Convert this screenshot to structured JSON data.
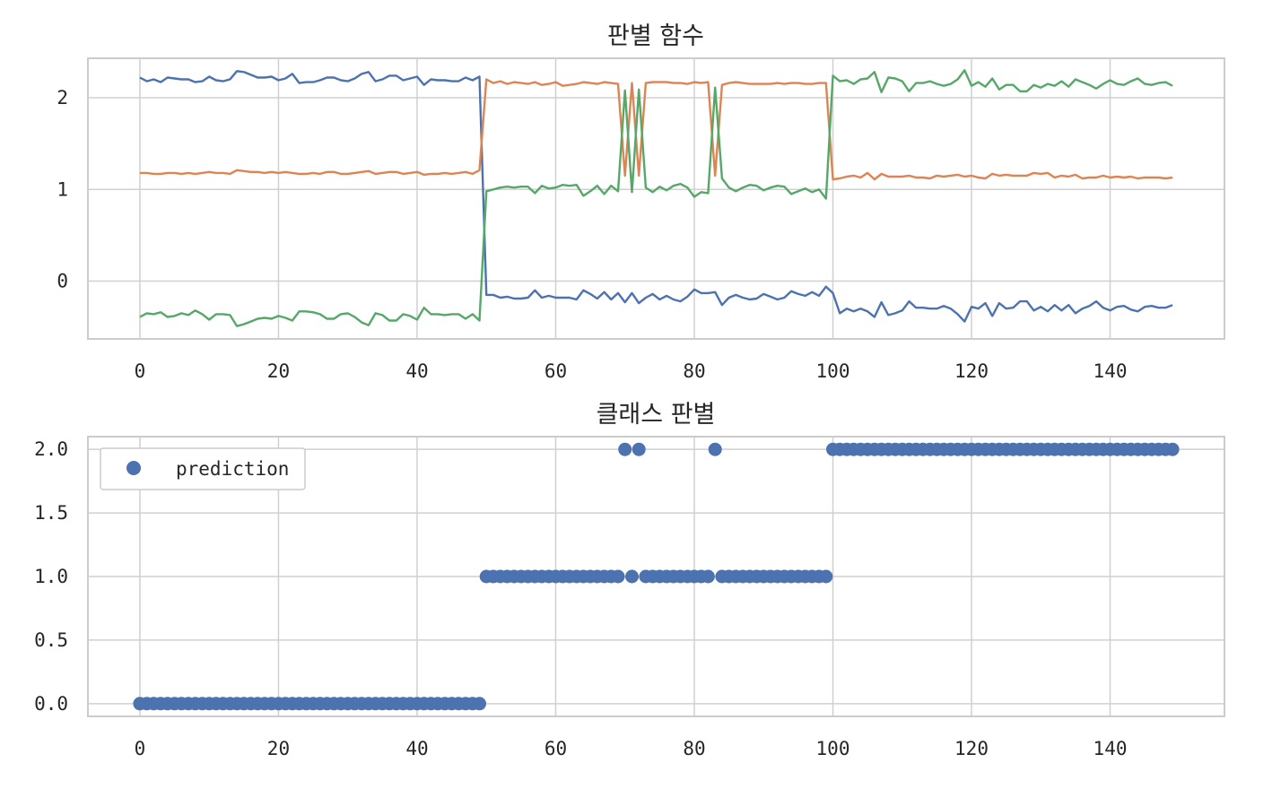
{
  "chart_data": [
    {
      "type": "line",
      "title": "판별 함수",
      "xlim": [
        -7.5,
        156.5
      ],
      "ylim": [
        -0.63,
        2.43
      ],
      "xticks": [
        0,
        20,
        40,
        60,
        80,
        100,
        120,
        140
      ],
      "yticks": [
        0,
        1,
        2
      ],
      "xtick_labels": [
        "0",
        "20",
        "40",
        "60",
        "80",
        "100",
        "120",
        "140"
      ],
      "ytick_labels": [
        "0",
        "1",
        "2"
      ],
      "grid": true,
      "series": [
        {
          "color": "#4c72b0",
          "values": [
            2.22,
            2.18,
            2.2,
            2.17,
            2.22,
            2.21,
            2.2,
            2.2,
            2.17,
            2.18,
            2.23,
            2.19,
            2.18,
            2.2,
            2.29,
            2.28,
            2.25,
            2.22,
            2.22,
            2.23,
            2.19,
            2.21,
            2.26,
            2.16,
            2.17,
            2.17,
            2.19,
            2.22,
            2.22,
            2.19,
            2.18,
            2.21,
            2.26,
            2.28,
            2.18,
            2.2,
            2.24,
            2.24,
            2.19,
            2.21,
            2.23,
            2.14,
            2.2,
            2.19,
            2.19,
            2.18,
            2.18,
            2.22,
            2.19,
            2.23,
            -0.15,
            -0.15,
            -0.18,
            -0.17,
            -0.19,
            -0.19,
            -0.18,
            -0.1,
            -0.18,
            -0.16,
            -0.18,
            -0.18,
            -0.18,
            -0.2,
            -0.1,
            -0.14,
            -0.19,
            -0.12,
            -0.2,
            -0.13,
            -0.23,
            -0.13,
            -0.24,
            -0.18,
            -0.14,
            -0.2,
            -0.16,
            -0.2,
            -0.22,
            -0.17,
            -0.09,
            -0.13,
            -0.13,
            -0.12,
            -0.26,
            -0.18,
            -0.15,
            -0.18,
            -0.2,
            -0.19,
            -0.14,
            -0.17,
            -0.2,
            -0.18,
            -0.11,
            -0.14,
            -0.16,
            -0.12,
            -0.16,
            -0.06,
            -0.13,
            -0.35,
            -0.3,
            -0.33,
            -0.3,
            -0.33,
            -0.39,
            -0.23,
            -0.37,
            -0.35,
            -0.32,
            -0.22,
            -0.29,
            -0.29,
            -0.3,
            -0.3,
            -0.27,
            -0.3,
            -0.36,
            -0.44,
            -0.28,
            -0.3,
            -0.24,
            -0.38,
            -0.24,
            -0.3,
            -0.29,
            -0.22,
            -0.22,
            -0.32,
            -0.28,
            -0.33,
            -0.26,
            -0.32,
            -0.26,
            -0.35,
            -0.3,
            -0.27,
            -0.22,
            -0.29,
            -0.32,
            -0.28,
            -0.27,
            -0.31,
            -0.33,
            -0.28,
            -0.27,
            -0.29,
            -0.29,
            -0.26
          ]
        },
        {
          "color": "#dd8452",
          "values": [
            1.18,
            1.18,
            1.17,
            1.17,
            1.18,
            1.18,
            1.17,
            1.18,
            1.17,
            1.18,
            1.19,
            1.18,
            1.18,
            1.17,
            1.21,
            1.2,
            1.19,
            1.19,
            1.18,
            1.19,
            1.18,
            1.19,
            1.18,
            1.17,
            1.17,
            1.18,
            1.17,
            1.19,
            1.19,
            1.17,
            1.17,
            1.18,
            1.19,
            1.2,
            1.17,
            1.18,
            1.19,
            1.19,
            1.17,
            1.18,
            1.19,
            1.16,
            1.17,
            1.17,
            1.18,
            1.17,
            1.18,
            1.19,
            1.17,
            1.21,
            2.2,
            2.16,
            2.18,
            2.15,
            2.17,
            2.16,
            2.15,
            2.17,
            2.14,
            2.15,
            2.17,
            2.13,
            2.14,
            2.15,
            2.17,
            2.16,
            2.15,
            2.17,
            2.16,
            2.15,
            1.15,
            2.16,
            1.15,
            2.16,
            2.17,
            2.17,
            2.17,
            2.16,
            2.16,
            2.15,
            2.17,
            2.16,
            2.17,
            1.15,
            2.14,
            2.16,
            2.17,
            2.16,
            2.15,
            2.15,
            2.15,
            2.15,
            2.16,
            2.15,
            2.16,
            2.16,
            2.15,
            2.15,
            2.16,
            2.16,
            1.11,
            1.12,
            1.14,
            1.15,
            1.13,
            1.18,
            1.11,
            1.17,
            1.14,
            1.14,
            1.14,
            1.15,
            1.13,
            1.13,
            1.12,
            1.15,
            1.14,
            1.15,
            1.16,
            1.14,
            1.15,
            1.13,
            1.12,
            1.17,
            1.15,
            1.16,
            1.15,
            1.15,
            1.15,
            1.18,
            1.17,
            1.18,
            1.13,
            1.15,
            1.14,
            1.16,
            1.12,
            1.13,
            1.13,
            1.15,
            1.13,
            1.14,
            1.13,
            1.14,
            1.12,
            1.13,
            1.13,
            1.13,
            1.12,
            1.13
          ]
        },
        {
          "color": "#55a868",
          "values": [
            -0.39,
            -0.35,
            -0.36,
            -0.34,
            -0.39,
            -0.38,
            -0.35,
            -0.37,
            -0.32,
            -0.36,
            -0.42,
            -0.36,
            -0.36,
            -0.37,
            -0.49,
            -0.47,
            -0.44,
            -0.41,
            -0.4,
            -0.41,
            -0.38,
            -0.4,
            -0.43,
            -0.33,
            -0.33,
            -0.34,
            -0.36,
            -0.41,
            -0.41,
            -0.36,
            -0.35,
            -0.39,
            -0.45,
            -0.48,
            -0.35,
            -0.37,
            -0.43,
            -0.43,
            -0.36,
            -0.38,
            -0.42,
            -0.29,
            -0.36,
            -0.36,
            -0.37,
            -0.36,
            -0.36,
            -0.41,
            -0.36,
            -0.43,
            0.98,
            1.0,
            1.02,
            1.03,
            1.02,
            1.03,
            1.03,
            0.96,
            1.04,
            1.01,
            1.02,
            1.05,
            1.04,
            1.05,
            0.93,
            0.98,
            1.04,
            0.95,
            1.04,
            0.98,
            2.08,
            0.97,
            2.09,
            1.02,
            0.97,
            1.03,
            0.99,
            1.04,
            1.06,
            1.02,
            0.92,
            0.97,
            0.96,
            2.11,
            1.12,
            1.02,
            0.98,
            1.02,
            1.05,
            1.04,
            0.99,
            1.02,
            1.04,
            1.03,
            0.95,
            0.98,
            1.01,
            0.97,
            1.0,
            0.9,
            2.24,
            2.18,
            2.19,
            2.15,
            2.2,
            2.21,
            2.28,
            2.06,
            2.22,
            2.21,
            2.18,
            2.07,
            2.16,
            2.16,
            2.18,
            2.15,
            2.13,
            2.15,
            2.2,
            2.3,
            2.13,
            2.17,
            2.12,
            2.21,
            2.09,
            2.14,
            2.14,
            2.07,
            2.07,
            2.14,
            2.11,
            2.15,
            2.13,
            2.18,
            2.12,
            2.2,
            2.17,
            2.14,
            2.1,
            2.15,
            2.19,
            2.15,
            2.14,
            2.18,
            2.21,
            2.15,
            2.14,
            2.16,
            2.17,
            2.13
          ]
        }
      ]
    },
    {
      "type": "scatter",
      "title": "클래스 판별",
      "xlim": [
        -7.5,
        156.5
      ],
      "ylim": [
        -0.1,
        2.1
      ],
      "xticks": [
        0,
        20,
        40,
        60,
        80,
        100,
        120,
        140
      ],
      "yticks": [
        0,
        0.5,
        1,
        1.5,
        2
      ],
      "xtick_labels": [
        "0",
        "20",
        "40",
        "60",
        "80",
        "100",
        "120",
        "140"
      ],
      "ytick_labels": [
        "0.0",
        "0.5",
        "1.0",
        "1.5",
        "2.0"
      ],
      "grid": true,
      "legend_position": "top-left",
      "series": [
        {
          "name": "prediction",
          "color": "#4c72b0",
          "values": [
            0,
            0,
            0,
            0,
            0,
            0,
            0,
            0,
            0,
            0,
            0,
            0,
            0,
            0,
            0,
            0,
            0,
            0,
            0,
            0,
            0,
            0,
            0,
            0,
            0,
            0,
            0,
            0,
            0,
            0,
            0,
            0,
            0,
            0,
            0,
            0,
            0,
            0,
            0,
            0,
            0,
            0,
            0,
            0,
            0,
            0,
            0,
            0,
            0,
            0,
            1,
            1,
            1,
            1,
            1,
            1,
            1,
            1,
            1,
            1,
            1,
            1,
            1,
            1,
            1,
            1,
            1,
            1,
            1,
            1,
            2,
            1,
            2,
            1,
            1,
            1,
            1,
            1,
            1,
            1,
            1,
            1,
            1,
            2,
            1,
            1,
            1,
            1,
            1,
            1,
            1,
            1,
            1,
            1,
            1,
            1,
            1,
            1,
            1,
            1,
            2,
            2,
            2,
            2,
            2,
            2,
            2,
            2,
            2,
            2,
            2,
            2,
            2,
            2,
            2,
            2,
            2,
            2,
            2,
            2,
            2,
            2,
            2,
            2,
            2,
            2,
            2,
            2,
            2,
            2,
            2,
            2,
            2,
            2,
            2,
            2,
            2,
            2,
            2,
            2,
            2,
            2,
            2,
            2,
            2,
            2,
            2,
            2,
            2,
            2
          ]
        }
      ]
    }
  ]
}
